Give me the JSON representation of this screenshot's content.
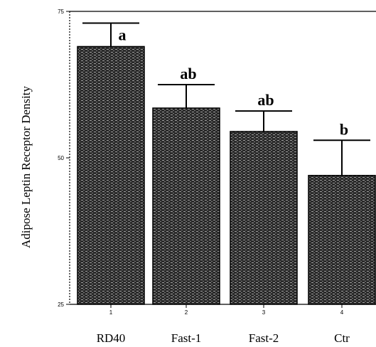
{
  "chart_data": {
    "type": "bar",
    "title": "",
    "xlabel": "",
    "ylabel": "Adipose Leptin Receptor Density",
    "ylim": [
      25,
      75
    ],
    "yticks": [
      25,
      50,
      75
    ],
    "x_tick_labels": [
      "1",
      "2",
      "3",
      "4"
    ],
    "categories": [
      "RD40",
      "Fast-1",
      "Fast-2",
      "Ctr"
    ],
    "values": [
      69,
      58.5,
      54.5,
      47
    ],
    "error_upper": [
      73,
      62.5,
      58,
      53
    ],
    "significance_labels": [
      "a",
      "ab",
      "ab",
      "b"
    ],
    "grid": false,
    "legend": "none",
    "bar_color": "#2a2a2a",
    "bar_texture_color": "#ffffff"
  }
}
